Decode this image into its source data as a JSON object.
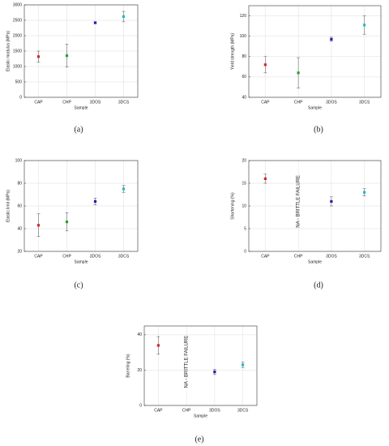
{
  "chart_data": [
    {
      "type": "scatter",
      "panel_label": "(a)",
      "ylabel": "Elastic modulus (MPa)",
      "xlabel": "Sample",
      "categories": [
        "CAP",
        "CHP",
        "3DOS",
        "3DCS"
      ],
      "values": [
        1320,
        1350,
        2420,
        2620
      ],
      "errors": [
        180,
        370,
        30,
        170
      ],
      "colors": [
        "#d62728",
        "#2ca02c",
        "#1f1fb4",
        "#17becf"
      ],
      "ylim": [
        0,
        3000
      ],
      "yticks": [
        0,
        500,
        1000,
        1500,
        2000,
        2500,
        3000
      ],
      "grid": true
    },
    {
      "type": "scatter",
      "panel_label": "(b)",
      "ylabel": "Yield strength (MPa)",
      "xlabel": "Sample",
      "categories": [
        "CAP",
        "CHP",
        "3DOS",
        "3DCS"
      ],
      "values": [
        72,
        64,
        97,
        111
      ],
      "errors": [
        8,
        15,
        2,
        9
      ],
      "colors": [
        "#d62728",
        "#2ca02c",
        "#1f1fb4",
        "#17becf"
      ],
      "ylim": [
        40,
        130
      ],
      "yticks": [
        40,
        60,
        80,
        100,
        120
      ],
      "grid": true
    },
    {
      "type": "scatter",
      "panel_label": "(c)",
      "ylabel": "Elastic limit (MPa)",
      "xlabel": "Sample",
      "categories": [
        "CAP",
        "CHP",
        "3DOS",
        "3DCS"
      ],
      "values": [
        43,
        46,
        64,
        75
      ],
      "errors": [
        10,
        8,
        3,
        3
      ],
      "colors": [
        "#d62728",
        "#2ca02c",
        "#1f1fb4",
        "#17becf"
      ],
      "ylim": [
        20,
        100
      ],
      "yticks": [
        20,
        40,
        60,
        80,
        100
      ],
      "grid": true
    },
    {
      "type": "scatter",
      "panel_label": "(d)",
      "ylabel": "Shortening (%)",
      "xlabel": "Sample",
      "annotation": "NA - BRITTLE FAILURE",
      "categories": [
        "CAP",
        "CHP",
        "3DOS",
        "3DCS"
      ],
      "values": [
        16,
        null,
        11,
        13
      ],
      "errors": [
        1,
        null,
        1,
        0.8
      ],
      "colors": [
        "#d62728",
        "#2ca02c",
        "#1f1fb4",
        "#17becf"
      ],
      "ylim": [
        0,
        20
      ],
      "yticks": [
        0,
        5,
        10,
        15,
        20
      ],
      "grid": true
    },
    {
      "type": "scatter",
      "panel_label": "(e)",
      "ylabel": "Barreling (%)",
      "xlabel": "Sample",
      "annotation": "NA - BRITTLE FAILURE",
      "categories": [
        "CAP",
        "CHP",
        "3DOS",
        "3DCS"
      ],
      "values": [
        34,
        null,
        19,
        23
      ],
      "errors": [
        5,
        null,
        1.5,
        1.5
      ],
      "colors": [
        "#d62728",
        "#2ca02c",
        "#1f1fb4",
        "#17becf"
      ],
      "ylim": [
        0,
        45
      ],
      "yticks": [
        0,
        20,
        40
      ],
      "grid": true
    }
  ]
}
